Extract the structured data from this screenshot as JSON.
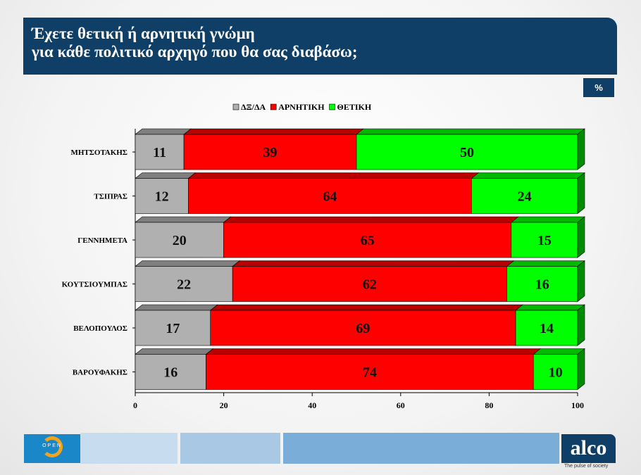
{
  "header": {
    "title_line1": "Έχετε θετική ή αρνητική γνώμη",
    "title_line2": "για κάθε πολιτικό αρχηγό που θα σας διαβάσω;",
    "unit_badge": "%"
  },
  "footer": {
    "alco_logo_text": "alco",
    "alco_tagline": "The pulse of society",
    "open_logo_text": "OPEN",
    "colors": {
      "dark": "#0f3f66",
      "light1": "#c7dcee",
      "light2": "#a9c8e4",
      "light3": "#7aaed8"
    }
  },
  "chart_data": {
    "type": "bar",
    "orientation": "horizontal",
    "stacked": true,
    "categories": [
      "ΜΗΤΣΟΤΑΚΗΣ",
      "ΤΣΙΠΡΑΣ",
      "ΓΕΝΝΗΜΕΤΑ",
      "ΚΟΥΤΣΙΟΥΜΠΑΣ",
      "ΒΕΛΟΠΟΥΛΟΣ",
      "ΒΑΡΟΥΦΑΚΗΣ"
    ],
    "series": [
      {
        "name": "ΔΞ/ΔΑ",
        "color": "#b0b0b0",
        "values": [
          11,
          12,
          20,
          22,
          17,
          16
        ]
      },
      {
        "name": "ΑΡΝΗΤΙΚΗ",
        "color": "#ff0000",
        "values": [
          39,
          64,
          65,
          62,
          69,
          74
        ]
      },
      {
        "name": "ΘΕΤΙΚΗ",
        "color": "#00ff00",
        "values": [
          50,
          24,
          15,
          16,
          14,
          10
        ]
      }
    ],
    "xlim": [
      0,
      100
    ],
    "xticks": [
      "0",
      "20",
      "40",
      "60",
      "80",
      "100"
    ],
    "legend_position": "top",
    "grid": false
  }
}
